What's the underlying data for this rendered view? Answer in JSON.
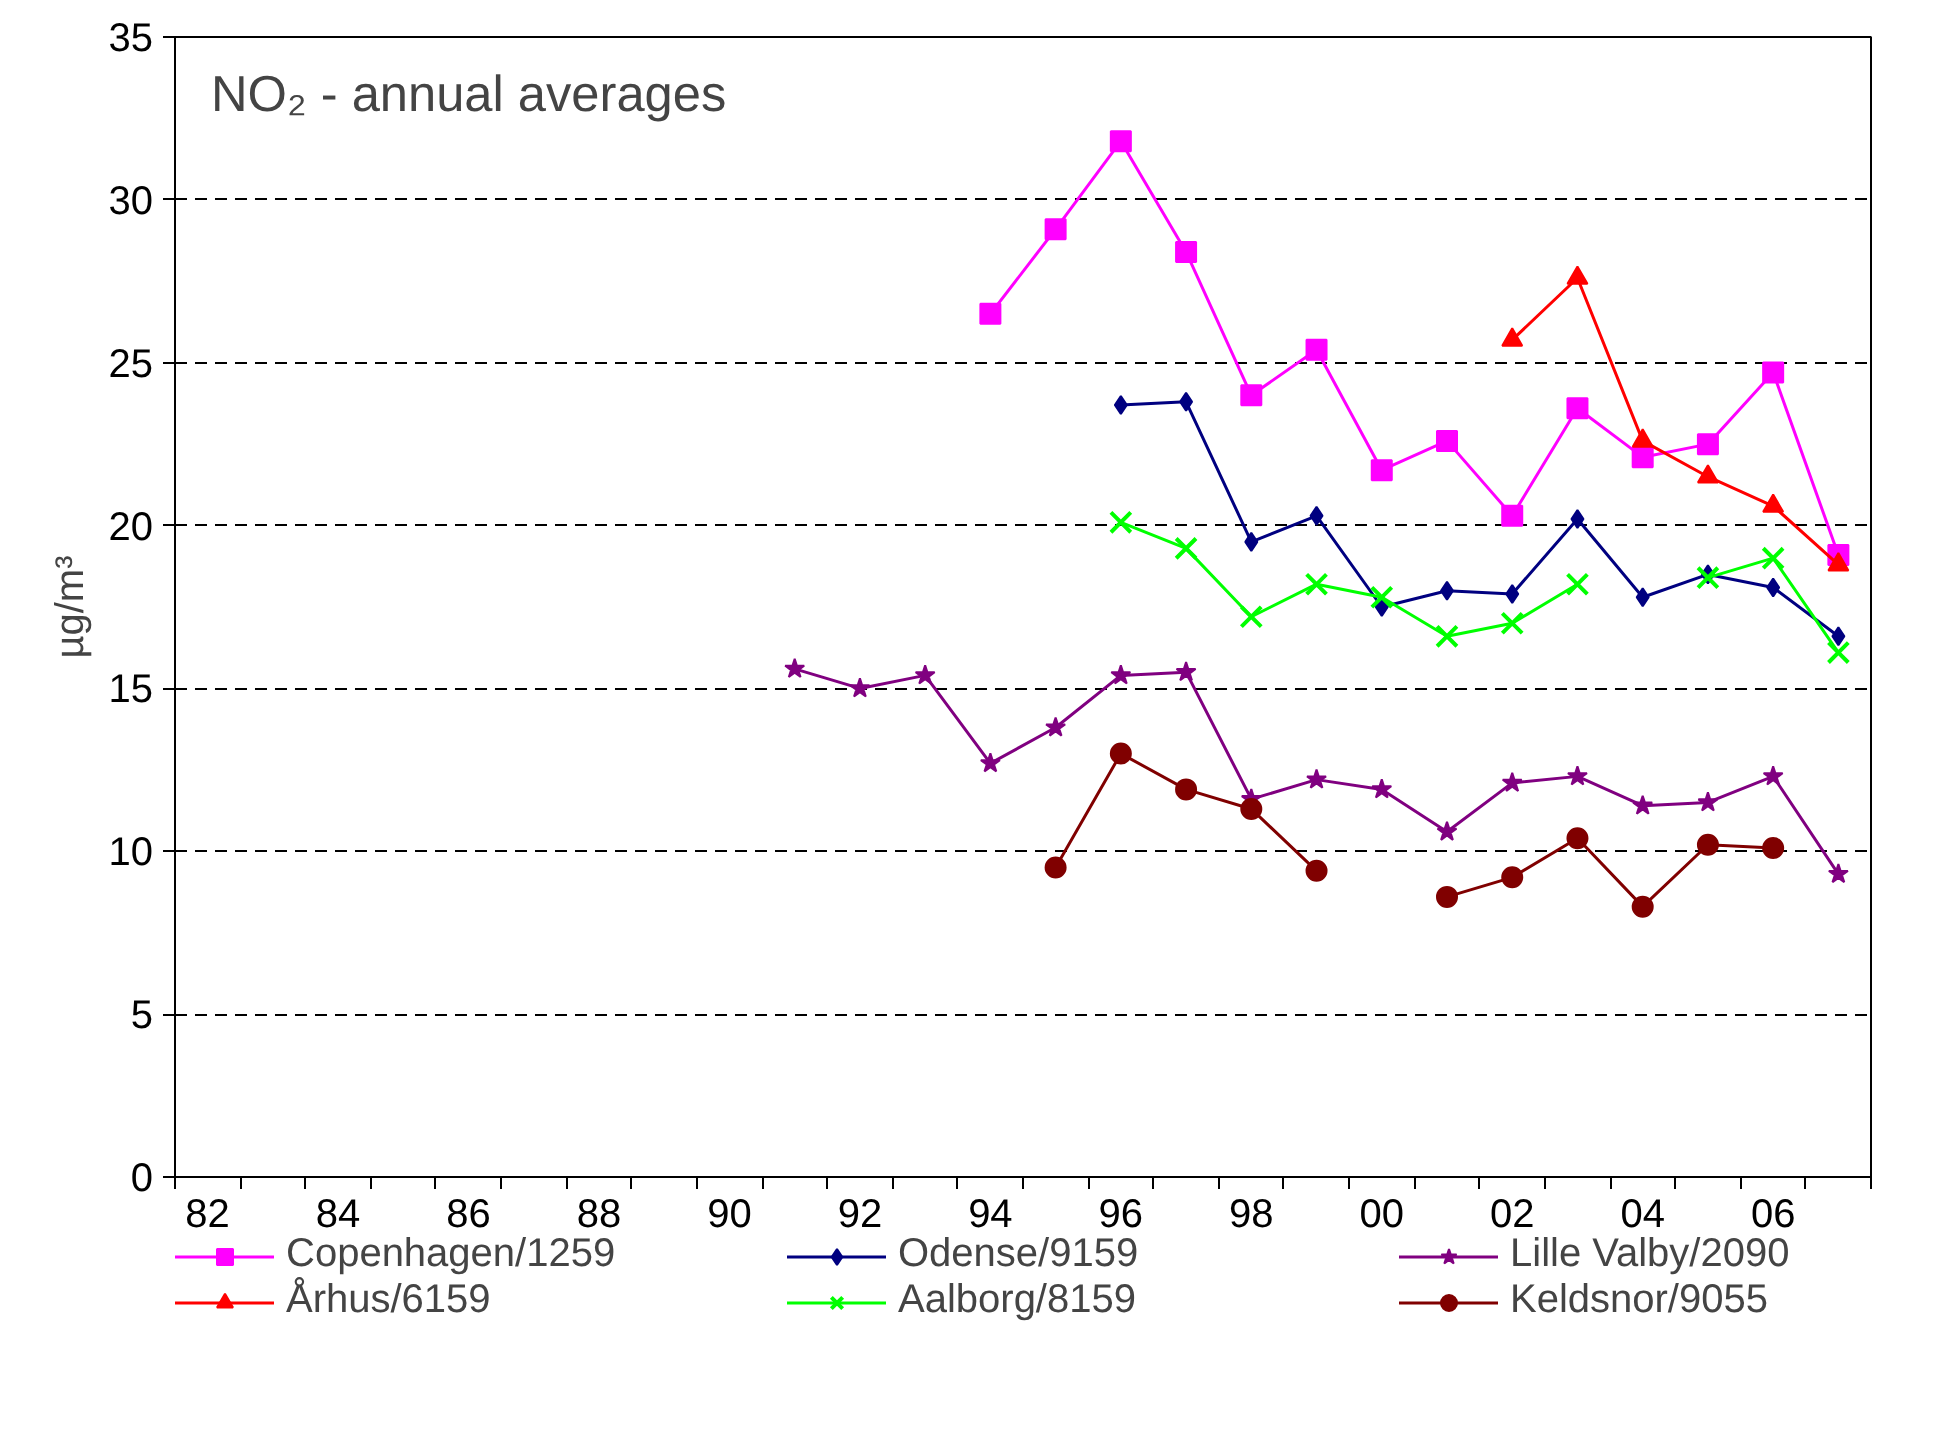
{
  "chart_data": {
    "type": "line",
    "title": "NO₂ - annual averages",
    "ylabel": "µg/m³",
    "categories": [
      "82",
      null,
      "84",
      null,
      "86",
      null,
      "88",
      null,
      "90",
      null,
      "92",
      null,
      "94",
      null,
      "96",
      null,
      "98",
      null,
      "00",
      null,
      "02",
      null,
      "04",
      null,
      "06",
      null
    ],
    "ylim": [
      0,
      35
    ],
    "yticks": [
      0,
      5,
      10,
      15,
      20,
      25,
      30,
      35
    ],
    "grid": "y",
    "legend": "bottom",
    "line_style": "solid",
    "series": [
      {
        "name": "Copenhagen/1259",
        "color": "#ff00ff",
        "marker": "square",
        "values": [
          null,
          null,
          null,
          null,
          null,
          null,
          null,
          null,
          null,
          null,
          null,
          null,
          26.5,
          29.1,
          31.8,
          28.4,
          24.0,
          25.4,
          21.7,
          22.6,
          20.3,
          23.6,
          22.1,
          22.5,
          24.7,
          19.1
        ]
      },
      {
        "name": "Århus/6159",
        "color": "#ff0000",
        "marker": "triangle",
        "values": [
          null,
          null,
          null,
          null,
          null,
          null,
          null,
          null,
          null,
          null,
          null,
          null,
          null,
          null,
          null,
          null,
          null,
          null,
          null,
          null,
          25.7,
          27.6,
          22.6,
          21.5,
          20.6,
          18.8
        ]
      },
      {
        "name": "Odense/9159",
        "color": "#000080",
        "marker": "diamond",
        "values": [
          null,
          null,
          null,
          null,
          null,
          null,
          null,
          null,
          null,
          null,
          null,
          null,
          null,
          null,
          23.7,
          23.8,
          19.5,
          20.3,
          17.5,
          18.0,
          17.9,
          20.2,
          17.8,
          18.5,
          18.1,
          16.6
        ]
      },
      {
        "name": "Aalborg/8159",
        "color": "#00ff00",
        "marker": "cross",
        "values": [
          null,
          null,
          null,
          null,
          null,
          null,
          null,
          null,
          null,
          null,
          null,
          null,
          null,
          null,
          20.1,
          19.3,
          17.2,
          18.2,
          17.8,
          16.6,
          17.0,
          18.2,
          null,
          18.4,
          19.0,
          16.1
        ]
      },
      {
        "name": "Lille Valby/2090",
        "color": "#800080",
        "marker": "star",
        "values": [
          null,
          null,
          null,
          null,
          null,
          null,
          null,
          null,
          null,
          15.6,
          15.0,
          15.4,
          12.7,
          13.8,
          15.4,
          15.5,
          11.6,
          12.2,
          11.9,
          10.6,
          12.1,
          12.3,
          11.4,
          11.5,
          12.3,
          9.3
        ]
      },
      {
        "name": "Keldsnor/9055",
        "color": "#800000",
        "marker": "circle",
        "values": [
          null,
          null,
          null,
          null,
          null,
          null,
          null,
          null,
          null,
          null,
          null,
          null,
          null,
          9.5,
          13.0,
          11.9,
          11.3,
          9.4,
          null,
          8.6,
          9.2,
          10.4,
          8.3,
          10.2,
          10.1,
          null
        ]
      }
    ]
  }
}
